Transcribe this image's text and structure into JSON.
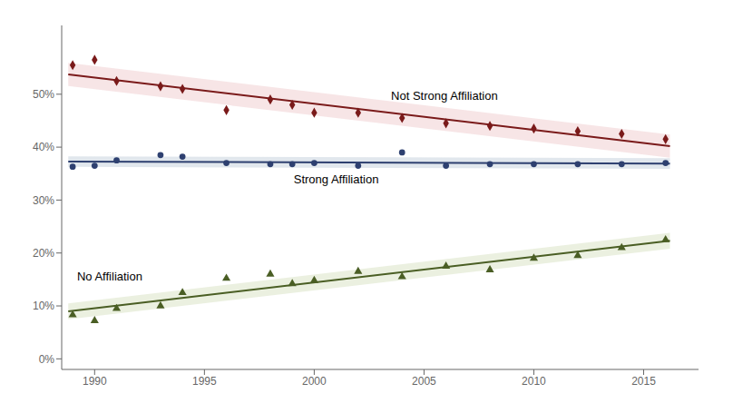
{
  "chart_data": {
    "type": "scatter",
    "xlim": [
      1988.5,
      2017.5
    ],
    "ylim": [
      -0.02,
      0.63
    ],
    "xticks": [
      1990,
      1995,
      2000,
      2005,
      2010,
      2015
    ],
    "yticks": [
      {
        "value": 0.0,
        "label": "0%"
      },
      {
        "value": 0.1,
        "label": "10%"
      },
      {
        "value": 0.2,
        "label": "20%"
      },
      {
        "value": 0.3,
        "label": "30%"
      },
      {
        "value": 0.4,
        "label": "40%"
      },
      {
        "value": 0.5,
        "label": "50%"
      }
    ],
    "grid": false,
    "series": [
      {
        "color": "#7a1a1a",
        "marker": "diamond",
        "x": [
          1989,
          1990,
          1991,
          1993,
          1994,
          1996,
          1998,
          1999,
          2000,
          2002,
          2004,
          2006,
          2008,
          2010,
          2012,
          2014,
          2016
        ],
        "values": [
          0.555,
          0.565,
          0.525,
          0.515,
          0.51,
          0.47,
          0.49,
          0.48,
          0.465,
          0.465,
          0.455,
          0.445,
          0.44,
          0.435,
          0.43,
          0.425,
          0.415
        ],
        "fit": {
          "x": [
            1988.8,
            2016.2
          ],
          "values": [
            0.537331,
            0.401928
          ]
        },
        "band": {
          "low": [
            0.515331,
            0.379928
          ],
          "high": [
            0.559331,
            0.423928
          ],
          "color": "#e8b4b8"
        }
      },
      {
        "color": "#2e4070",
        "marker": "circle",
        "x": [
          1989,
          1990,
          1991,
          1993,
          1994,
          1996,
          1998,
          1999,
          2000,
          2002,
          2004,
          2006,
          2008,
          2010,
          2012,
          2014,
          2016
        ],
        "values": [
          0.363,
          0.365,
          0.375,
          0.385,
          0.382,
          0.37,
          0.368,
          0.368,
          0.37,
          0.365,
          0.39,
          0.365,
          0.368,
          0.368,
          0.368,
          0.368,
          0.37
        ],
        "fit": {
          "x": [
            1988.8,
            2016.2
          ],
          "values": [
            0.372734,
            0.36906
          ]
        },
        "band": {
          "low": [
            0.362734,
            0.35906
          ],
          "high": [
            0.382734,
            0.37906
          ],
          "color": "#aabbcc"
        }
      },
      {
        "color": "#4a5e24",
        "marker": "triangle",
        "x": [
          1989,
          1990,
          1991,
          1993,
          1994,
          1996,
          1998,
          1999,
          2000,
          2002,
          2004,
          2006,
          2008,
          2010,
          2012,
          2014,
          2016
        ],
        "values": [
          0.083,
          0.072,
          0.095,
          0.1,
          0.125,
          0.152,
          0.16,
          0.142,
          0.148,
          0.165,
          0.155,
          0.175,
          0.168,
          0.19,
          0.195,
          0.21,
          0.225
        ],
        "fit": {
          "x": [
            1988.8,
            2016.2
          ],
          "values": [
            0.089942,
            0.22294
          ]
        },
        "band": {
          "low": [
            0.074942,
            0.20794
          ],
          "high": [
            0.104942,
            0.23794
          ],
          "color": "#c5d5a5"
        }
      }
    ],
    "annotations": [
      {
        "text": "Not Strong Affiliation",
        "x": 2003.5,
        "y": 0.49
      },
      {
        "text": "Strong Affiliation",
        "x": 2001,
        "y": 0.348
      },
      {
        "text": "No Affiliation",
        "x": 1989.2,
        "y": 0.148
      }
    ]
  }
}
